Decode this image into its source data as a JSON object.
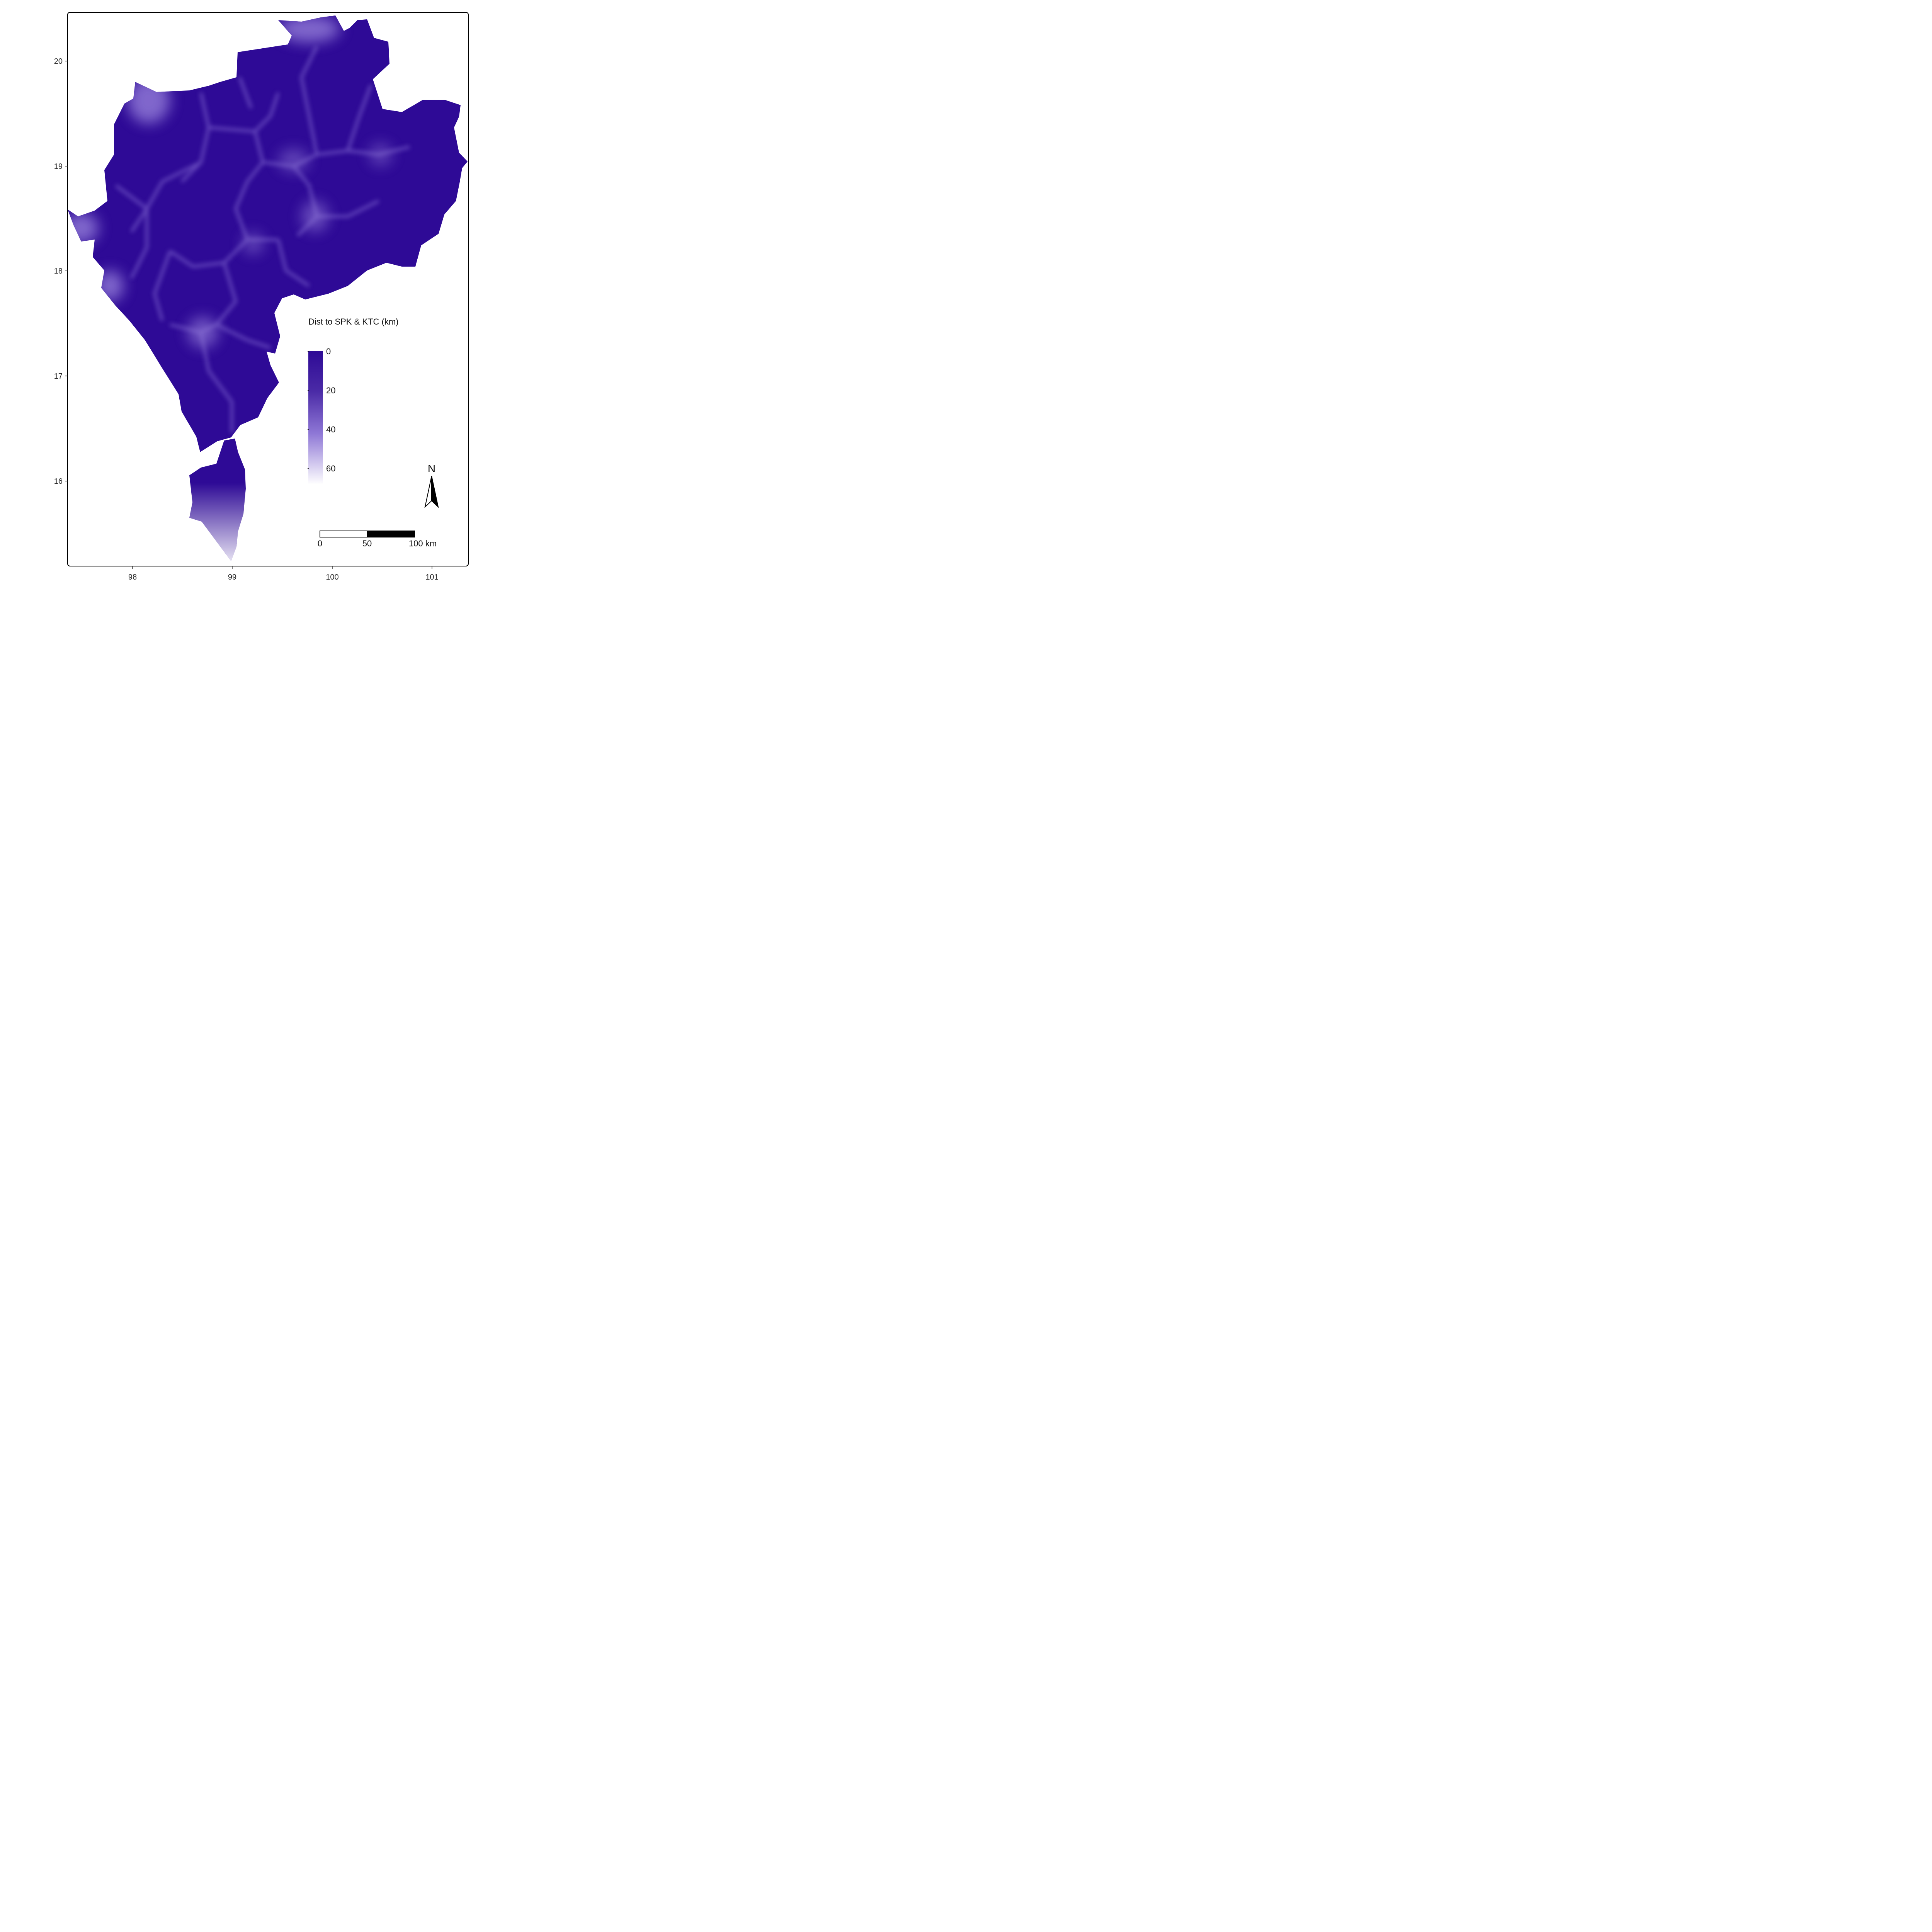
{
  "map": {
    "legend": {
      "title": "Dist to SPK & KTC (km)",
      "breaks": [
        "0",
        "20",
        "40",
        "60"
      ],
      "color_near": "#2e0a96",
      "color_far": "#ffffff"
    },
    "axes": {
      "x_ticks": [
        "98",
        "99",
        "100",
        "101"
      ],
      "y_ticks": [
        "20",
        "19",
        "18",
        "17",
        "16"
      ]
    },
    "scale_bar": {
      "labels": [
        "0",
        "50",
        "100 km"
      ]
    },
    "north_arrow": {
      "label": "N"
    },
    "colors": {
      "fill_dark": "#2e0a96",
      "fill_glow": "#8f78d6",
      "frame": "#000000"
    }
  }
}
